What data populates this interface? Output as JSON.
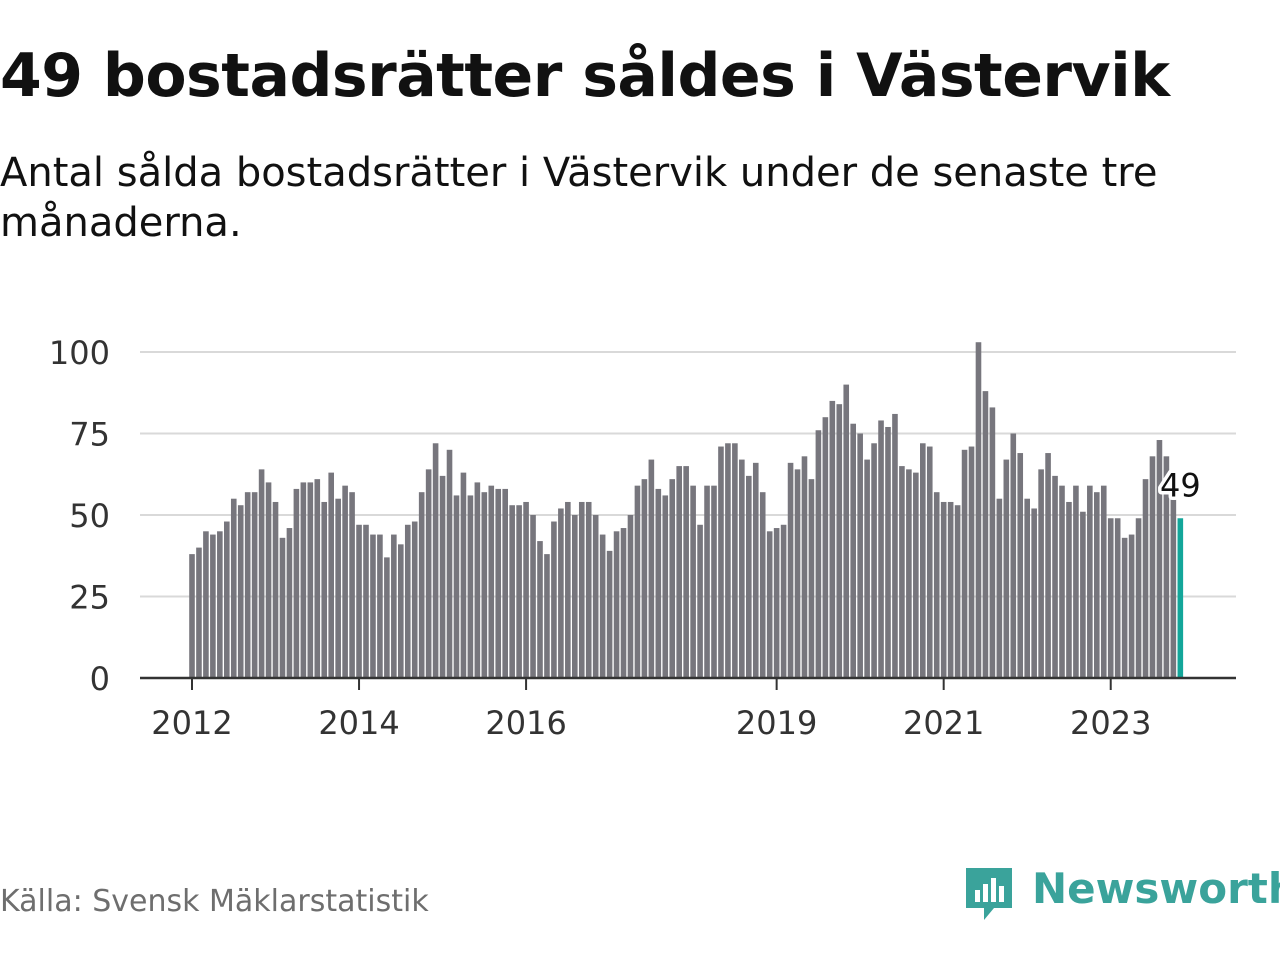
{
  "headline": "49 bostadsrätter såldes i Västervik",
  "subtitle": "Antal sålda bostadsrätter i Västervik under de senaste tre månaderna.",
  "source": "Källa: Svensk Mäklarstatistik",
  "brand": {
    "name": "Newsworthy",
    "icon": "newsworthy-logo-icon"
  },
  "colors": {
    "bar": "#77767d",
    "highlight": "#13a69a",
    "grid": "#d9d9d9",
    "axis": "#333333",
    "brand": "#3aa39b"
  },
  "chart_data": {
    "type": "bar",
    "title": "49 bostadsrätter såldes i Västervik",
    "subtitle": "Antal sålda bostadsrätter i Västervik under de senaste tre månaderna.",
    "xlabel": "",
    "ylabel": "",
    "ylim": [
      0,
      100
    ],
    "yticks": [
      0,
      25,
      50,
      75,
      100
    ],
    "grid": true,
    "start": "2012-01",
    "x_ticks": [
      {
        "label": "2012",
        "index": 0
      },
      {
        "label": "2014",
        "index": 24
      },
      {
        "label": "2016",
        "index": 48
      },
      {
        "label": "2019",
        "index": 84
      },
      {
        "label": "2021",
        "index": 108
      },
      {
        "label": "2023",
        "index": 132
      }
    ],
    "values": [
      38,
      40,
      45,
      44,
      45,
      48,
      55,
      53,
      57,
      57,
      64,
      60,
      54,
      43,
      46,
      58,
      60,
      60,
      61,
      54,
      63,
      55,
      59,
      57,
      47,
      47,
      44,
      44,
      37,
      44,
      41,
      47,
      48,
      57,
      64,
      72,
      62,
      70,
      56,
      63,
      56,
      60,
      57,
      59,
      58,
      58,
      53,
      53,
      54,
      50,
      42,
      38,
      48,
      52,
      54,
      50,
      54,
      54,
      50,
      44,
      39,
      45,
      46,
      50,
      59,
      61,
      67,
      58,
      56,
      61,
      65,
      65,
      59,
      47,
      59,
      59,
      71,
      72,
      72,
      67,
      62,
      66,
      57,
      45,
      46,
      47,
      66,
      64,
      68,
      61,
      76,
      80,
      85,
      84,
      90,
      78,
      75,
      67,
      72,
      79,
      77,
      81,
      65,
      64,
      63,
      72,
      71,
      57,
      54,
      54,
      53,
      70,
      71,
      103,
      88,
      83,
      55,
      67,
      75,
      69,
      55,
      52,
      64,
      69,
      62,
      59,
      54,
      59,
      51,
      59,
      57,
      59,
      49,
      49,
      43,
      44,
      49,
      61,
      68,
      73,
      68,
      55,
      49
    ],
    "highlight_index": 142,
    "annotation": {
      "index": 142,
      "label": "49"
    }
  }
}
